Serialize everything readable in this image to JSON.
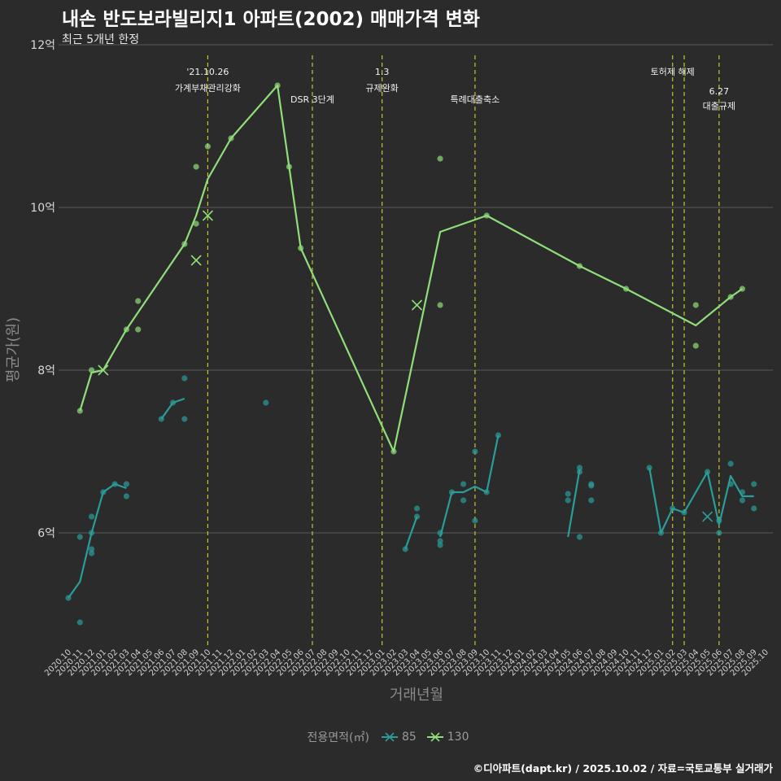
{
  "chart_data": {
    "type": "line",
    "title": "내손 반도보라빌리지1 아파트(2002) 매매가격 변화",
    "subtitle": "최근 5개년 한정",
    "xlabel": "거래년월",
    "ylabel": "평균가(원)",
    "caption": "©디아파트(dapt.kr) / 2025.10.02 / 자료=국토교통부 실거래가",
    "legend_title": "전용면적(㎡)",
    "ylim": [
      4.6,
      12
    ],
    "y_ticks": [
      {
        "value": 6,
        "label": "6억"
      },
      {
        "value": 8,
        "label": "8억"
      },
      {
        "value": 10,
        "label": "10억"
      },
      {
        "value": 12,
        "label": "12억"
      }
    ],
    "x_labels": [
      "2020.10",
      "2020.11",
      "2020.12",
      "2021.01",
      "2021.02",
      "2021.03",
      "2021.04",
      "2021.05",
      "2021.06",
      "2021.07",
      "2021.08",
      "2021.09",
      "2021.10",
      "2021.11",
      "2021.12",
      "2022.01",
      "2022.02",
      "2022.03",
      "2022.04",
      "2022.05",
      "2022.06",
      "2022.07",
      "2022.08",
      "2022.09",
      "2022.10",
      "2022.11",
      "2022.12",
      "2023.01",
      "2023.02",
      "2023.03",
      "2023.04",
      "2023.05",
      "2023.06",
      "2023.07",
      "2023.08",
      "2023.09",
      "2023.10",
      "2023.11",
      "2023.12",
      "2024.01",
      "2024.02",
      "2024.03",
      "2024.04",
      "2024.05",
      "2024.06",
      "2024.07",
      "2024.08",
      "2024.09",
      "2024.10",
      "2024.11",
      "2024.12",
      "2025.01",
      "2025.02",
      "2025.03",
      "2025.04",
      "2025.05",
      "2025.06",
      "2025.07",
      "2025.08",
      "2025.09",
      "2025.10"
    ],
    "events": [
      {
        "x": "2021.10",
        "label": [
          "'21.10.26",
          "가계부채관리강화"
        ],
        "row": 0
      },
      {
        "x": "2022.07",
        "label": [
          "DSR 3단계"
        ],
        "row": 1
      },
      {
        "x": "2023.01",
        "label": [
          "1.3",
          "규제완화"
        ],
        "row": 0
      },
      {
        "x": "2023.09",
        "label": [
          "특례대출축소"
        ],
        "row": 1
      },
      {
        "x": "2025.02",
        "label": [
          "토허제 해제"
        ],
        "row": 0
      },
      {
        "x": "2025.03",
        "label": [],
        "row": 0
      },
      {
        "x": "2025.06",
        "label": [
          "6.27",
          "대출규제"
        ],
        "row": 2
      }
    ],
    "series": [
      {
        "name": "85",
        "color": "#2a9d9a",
        "line": [
          [
            [
              "2020.10",
              5.2
            ],
            [
              "2020.11",
              5.4
            ],
            [
              "2020.12",
              6.0
            ],
            [
              "2021.01",
              6.5
            ],
            [
              "2021.02",
              6.6
            ],
            [
              "2021.03",
              6.55
            ]
          ],
          [
            [
              "2021.06",
              7.4
            ],
            [
              "2021.07",
              7.6
            ],
            [
              "2021.08",
              7.65
            ]
          ],
          [
            [
              "2023.03",
              5.8
            ],
            [
              "2023.04",
              6.2
            ]
          ],
          [
            [
              "2023.06",
              5.95
            ],
            [
              "2023.07",
              6.5
            ],
            [
              "2023.08",
              6.5
            ],
            [
              "2023.09",
              6.57
            ],
            [
              "2023.10",
              6.5
            ],
            [
              "2023.11",
              7.2
            ]
          ],
          [
            [
              "2024.05",
              5.95
            ],
            [
              "2024.06",
              6.78
            ]
          ],
          [
            [
              "2024.12",
              6.8
            ],
            [
              "2025.01",
              6.0
            ],
            [
              "2025.02",
              6.3
            ],
            [
              "2025.03",
              6.25
            ],
            [
              "2025.05",
              6.75
            ],
            [
              "2025.06",
              6.1
            ],
            [
              "2025.07",
              6.7
            ],
            [
              "2025.08",
              6.45
            ],
            [
              "2025.09",
              6.45
            ]
          ]
        ],
        "points": [
          [
            "2020.10",
            5.2
          ],
          [
            "2020.11",
            5.95
          ],
          [
            "2020.11",
            4.9
          ],
          [
            "2020.12",
            6.2
          ],
          [
            "2020.12",
            6.0
          ],
          [
            "2020.12",
            5.8
          ],
          [
            "2020.12",
            5.75
          ],
          [
            "2021.01",
            6.5
          ],
          [
            "2021.02",
            6.6
          ],
          [
            "2021.03",
            6.6
          ],
          [
            "2021.03",
            6.45
          ],
          [
            "2021.06",
            7.4
          ],
          [
            "2021.07",
            7.6
          ],
          [
            "2021.08",
            7.9
          ],
          [
            "2021.08",
            7.4
          ],
          [
            "2022.03",
            7.6
          ],
          [
            "2023.03",
            5.8
          ],
          [
            "2023.04",
            6.3
          ],
          [
            "2023.04",
            6.2
          ],
          [
            "2023.06",
            5.85
          ],
          [
            "2023.06",
            5.9
          ],
          [
            "2023.06",
            6.0
          ],
          [
            "2023.07",
            6.5
          ],
          [
            "2023.08",
            6.6
          ],
          [
            "2023.08",
            6.4
          ],
          [
            "2023.09",
            7.0
          ],
          [
            "2023.09",
            6.15
          ],
          [
            "2023.10",
            6.5
          ],
          [
            "2023.11",
            7.2
          ],
          [
            "2024.05",
            6.48
          ],
          [
            "2024.05",
            6.4
          ],
          [
            "2024.06",
            5.95
          ],
          [
            "2024.06",
            6.8
          ],
          [
            "2024.06",
            6.75
          ],
          [
            "2024.07",
            6.6
          ],
          [
            "2024.07",
            6.58
          ],
          [
            "2024.07",
            6.4
          ],
          [
            "2024.12",
            6.8
          ],
          [
            "2025.01",
            6.0
          ],
          [
            "2025.02",
            6.3
          ],
          [
            "2025.03",
            6.25
          ],
          [
            "2025.05",
            6.75
          ],
          [
            "2025.06",
            6.0
          ],
          [
            "2025.06",
            6.15
          ],
          [
            "2025.07",
            6.85
          ],
          [
            "2025.07",
            6.6
          ],
          [
            "2025.08",
            6.5
          ],
          [
            "2025.08",
            6.4
          ],
          [
            "2025.09",
            6.6
          ],
          [
            "2025.09",
            6.3
          ]
        ],
        "crosses": [
          [
            "2025.05",
            6.2
          ]
        ]
      },
      {
        "name": "130",
        "color": "#8fde7a",
        "line": [
          [
            [
              "2020.11",
              7.5
            ],
            [
              "2020.12",
              7.97
            ],
            [
              "2021.01",
              8.0
            ],
            [
              "2021.03",
              8.5
            ],
            [
              "2021.08",
              9.55
            ],
            [
              "2021.09",
              9.9
            ],
            [
              "2021.10",
              10.35
            ],
            [
              "2021.12",
              10.85
            ],
            [
              "2022.04",
              11.5
            ],
            [
              "2022.06",
              9.5
            ],
            [
              "2023.02",
              7.0
            ],
            [
              "2023.06",
              9.7
            ],
            [
              "2023.10",
              9.9
            ],
            [
              "2024.06",
              9.28
            ],
            [
              "2024.10",
              9.0
            ],
            [
              "2025.04",
              8.55
            ],
            [
              "2025.07",
              8.9
            ],
            [
              "2025.08",
              9.0
            ]
          ]
        ],
        "points": [
          [
            "2020.11",
            7.5
          ],
          [
            "2020.12",
            8.0
          ],
          [
            "2021.03",
            8.5
          ],
          [
            "2021.04",
            8.85
          ],
          [
            "2021.04",
            8.5
          ],
          [
            "2021.08",
            9.55
          ],
          [
            "2021.09",
            10.5
          ],
          [
            "2021.09",
            9.8
          ],
          [
            "2021.10",
            10.75
          ],
          [
            "2021.12",
            10.85
          ],
          [
            "2022.04",
            11.5
          ],
          [
            "2022.05",
            10.5
          ],
          [
            "2022.06",
            9.5
          ],
          [
            "2023.02",
            7.0
          ],
          [
            "2023.06",
            10.6
          ],
          [
            "2023.06",
            8.8
          ],
          [
            "2023.10",
            9.9
          ],
          [
            "2024.06",
            9.28
          ],
          [
            "2024.10",
            9.0
          ],
          [
            "2025.04",
            8.8
          ],
          [
            "2025.04",
            8.3
          ],
          [
            "2025.07",
            8.9
          ],
          [
            "2025.08",
            9.0
          ]
        ],
        "crosses": [
          [
            "2021.01",
            8.0
          ],
          [
            "2021.09",
            9.35
          ],
          [
            "2021.10",
            9.9
          ],
          [
            "2023.04",
            8.8
          ]
        ]
      }
    ]
  }
}
